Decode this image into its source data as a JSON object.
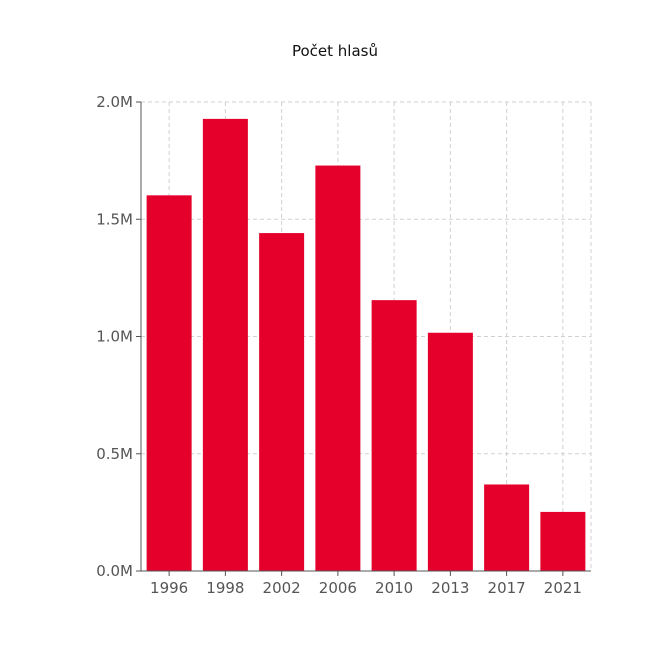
{
  "chart_data": {
    "type": "bar",
    "title": "Počet hlasů",
    "xlabel": "",
    "ylabel": "",
    "categories": [
      "1996",
      "1998",
      "2002",
      "2006",
      "2010",
      "2013",
      "2017",
      "2021"
    ],
    "values": [
      1602000,
      1928000,
      1441000,
      1729000,
      1155000,
      1016000,
      369000,
      252000
    ],
    "ylim": [
      0,
      2000000
    ],
    "yticks": [
      0,
      500000,
      1000000,
      1500000,
      2000000
    ],
    "ytick_labels": [
      "0.0M",
      "0.5M",
      "1.0M",
      "1.5M",
      "2.0M"
    ],
    "grid": true,
    "legend": "none",
    "colors": {
      "bar": "#e4002b",
      "grid": "#d0d0d0",
      "axis": "#555555",
      "text": "#555555",
      "title": "#111111"
    }
  }
}
